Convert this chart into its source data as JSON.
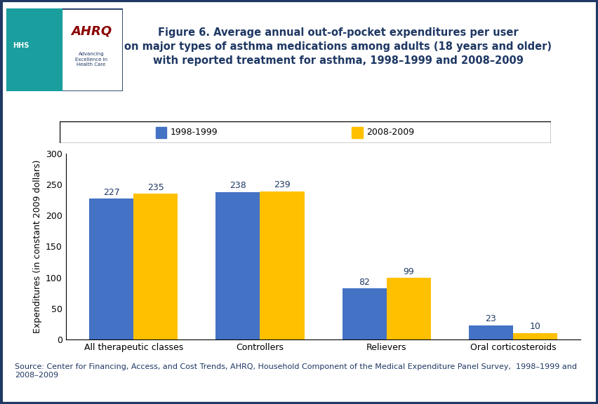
{
  "title_line1": "Figure 6. Average annual out-of-pocket expenditures per user",
  "title_line2": "on major types of asthma medications among adults (18 years and older)",
  "title_line3": "with reported treatment for asthma, 1998–1999 and 2008–2009",
  "categories": [
    "All therapeutic classes",
    "Controllers",
    "Relievers",
    "Oral corticosteroids"
  ],
  "series": [
    {
      "label": "1998-1999",
      "values": [
        227,
        238,
        82,
        23
      ],
      "color": "#4472C4"
    },
    {
      "label": "2008-2009",
      "values": [
        235,
        239,
        99,
        10
      ],
      "color": "#FFC000"
    }
  ],
  "ylabel": "Expenditures (in constant 2009 dollars)",
  "ylim": [
    0,
    300
  ],
  "yticks": [
    0,
    50,
    100,
    150,
    200,
    250,
    300
  ],
  "bar_width": 0.35,
  "source_text": "Source: Center for Financing, Access, and Cost Trends, AHRQ, Household Component of the Medical Expenditure Panel Survey,  1998–1999 and\n2008–2009",
  "bg_color": "#FFFFFF",
  "title_color": "#1F3864",
  "bar_label_fontsize": 9,
  "axis_label_fontsize": 9,
  "tick_label_fontsize": 9,
  "legend_fontsize": 9,
  "source_fontsize": 8,
  "border_color": "#1F3864",
  "separator_color": "#1F3864",
  "logo_bg": "#008B8B",
  "ahrq_color": "#8B0000",
  "source_color": "#1F3864"
}
